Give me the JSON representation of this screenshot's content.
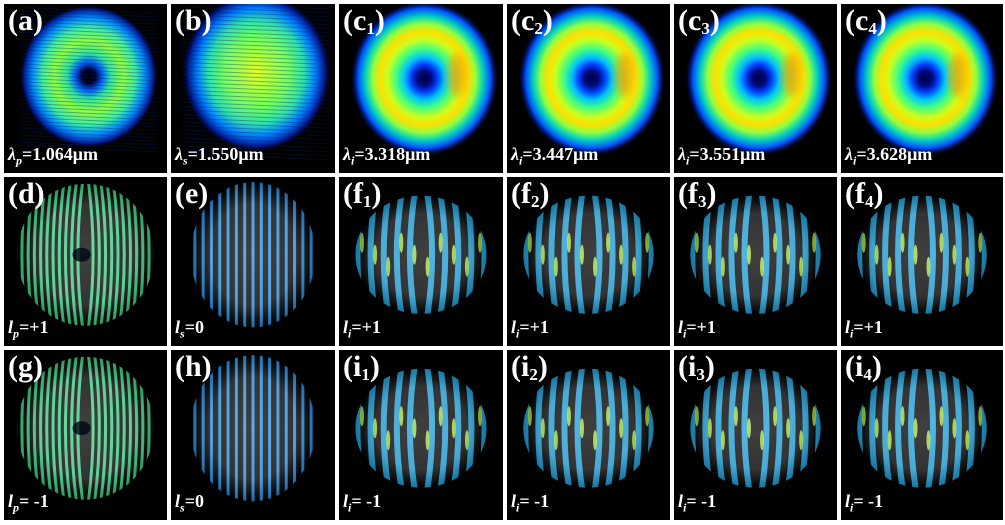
{
  "rows": [
    {
      "kind": "donut",
      "panels": [
        {
          "label": "(a)",
          "sub": "",
          "sym": "λ",
          "symsub": "p",
          "val": "=1.064μm",
          "style": "speckle-donut"
        },
        {
          "label": "(b)",
          "sub": "",
          "sym": "λ",
          "symsub": "s",
          "val": "=1.550μm",
          "style": "speckle-disk"
        },
        {
          "label": "(c",
          "sub": "1",
          "sym": "λ",
          "symsub": "i",
          "val": "=3.318μm",
          "style": "donut"
        },
        {
          "label": "(c",
          "sub": "2",
          "sym": "λ",
          "symsub": "i",
          "val": "=3.447μm",
          "style": "donut"
        },
        {
          "label": "(c",
          "sub": "3",
          "sym": "λ",
          "symsub": "i",
          "val": "=3.551μm",
          "style": "donut"
        },
        {
          "label": "(c",
          "sub": "4",
          "sym": "λ",
          "symsub": "i",
          "val": "=3.628μm",
          "style": "donut"
        }
      ]
    },
    {
      "kind": "fringe",
      "panels": [
        {
          "label": "(d)",
          "sub": "",
          "sym": "l",
          "symsub": "p",
          "val": "=+1",
          "style": "fork-dense"
        },
        {
          "label": "(e)",
          "sub": "",
          "sym": "l",
          "symsub": "s",
          "val": "=0",
          "style": "straight"
        },
        {
          "label": "(f",
          "sub": "1",
          "sym": "l",
          "symsub": "i",
          "val": "=+1",
          "style": "fork-wide"
        },
        {
          "label": "(f",
          "sub": "2",
          "sym": "l",
          "symsub": "i",
          "val": "=+1",
          "style": "fork-wide"
        },
        {
          "label": "(f",
          "sub": "3",
          "sym": "l",
          "symsub": "i",
          "val": "=+1",
          "style": "fork-wide"
        },
        {
          "label": "(f",
          "sub": "4",
          "sym": "l",
          "symsub": "i",
          "val": "=+1",
          "style": "fork-wide"
        }
      ]
    },
    {
      "kind": "fringe",
      "panels": [
        {
          "label": "(g)",
          "sub": "",
          "sym": "l",
          "symsub": "p",
          "val": "= -1",
          "style": "fork-dense"
        },
        {
          "label": "(h)",
          "sub": "",
          "sym": "l",
          "symsub": "s",
          "val": "=0",
          "style": "straight"
        },
        {
          "label": "(i",
          "sub": "1",
          "sym": "l",
          "symsub": "i",
          "val": "= -1",
          "style": "fork-wide"
        },
        {
          "label": "(i",
          "sub": "2",
          "sym": "l",
          "symsub": "i",
          "val": "= -1",
          "style": "fork-wide"
        },
        {
          "label": "(i",
          "sub": "3",
          "sym": "l",
          "symsub": "i",
          "val": "= -1",
          "style": "fork-wide"
        },
        {
          "label": "(i",
          "sub": "4",
          "sym": "l",
          "symsub": "i",
          "val": "= -1",
          "style": "fork-wide"
        }
      ]
    }
  ],
  "colors": {
    "background": "#000000",
    "text": "#ffffff",
    "outer": "#ffffff"
  }
}
